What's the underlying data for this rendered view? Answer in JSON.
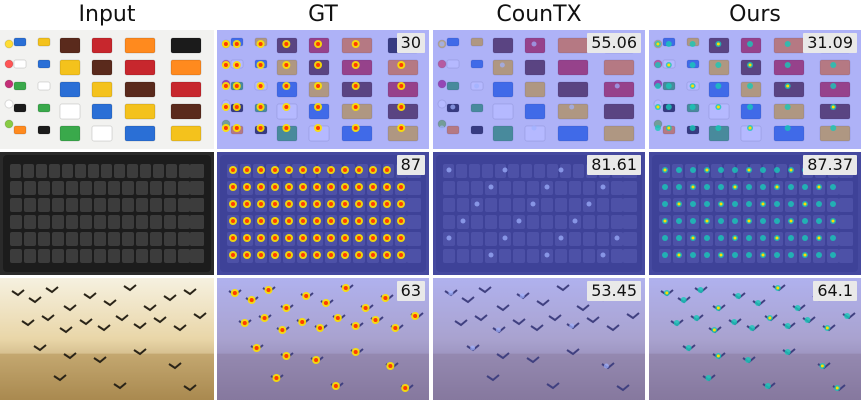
{
  "columns": [
    "Input",
    "GT",
    "CounTX",
    "Ours"
  ],
  "rows": [
    {
      "name": "lego",
      "counts": [
        "30",
        "55.06",
        "31.09"
      ]
    },
    {
      "name": "keyboard",
      "counts": [
        "87",
        "81.61",
        "87.37"
      ]
    },
    {
      "name": "birds",
      "counts": [
        "63",
        "53.45",
        "64.1"
      ]
    }
  ],
  "colors": {
    "overlay": "#5b63ff",
    "heat_hot": "#ff3b00",
    "heat_mid": "#ffe100",
    "heat_cool": "#18c8b8"
  }
}
